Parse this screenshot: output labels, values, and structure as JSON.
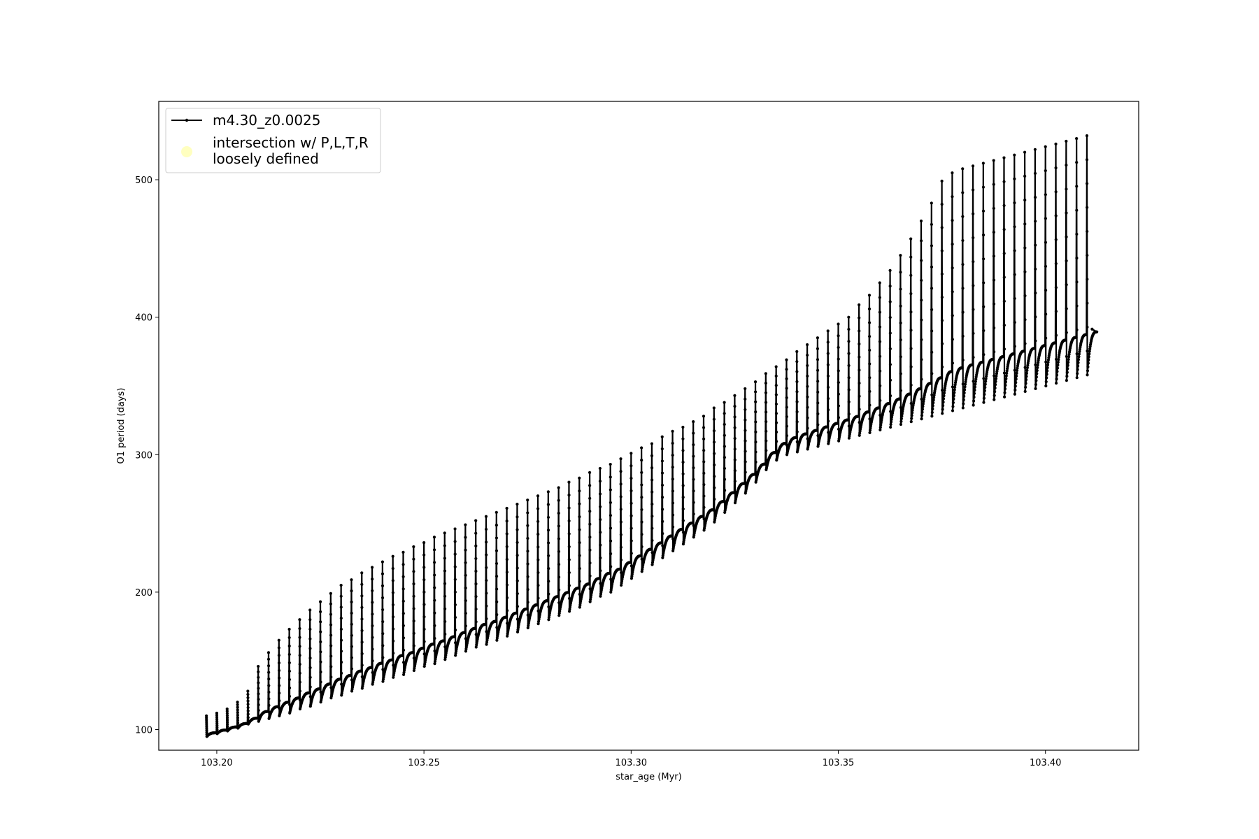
{
  "chart_data": {
    "type": "line",
    "xlabel": "star_age (Myr)",
    "ylabel": "O1 period (days)",
    "xlim": [
      103.186,
      103.4225
    ],
    "ylim": [
      85,
      557
    ],
    "x_ticks": [
      103.2,
      103.25,
      103.3,
      103.35,
      103.4
    ],
    "x_tick_labels": [
      "103.20",
      "103.25",
      "103.30",
      "103.35",
      "103.40"
    ],
    "y_ticks": [
      100,
      200,
      300,
      400,
      500
    ],
    "y_tick_labels": [
      "100",
      "200",
      "300",
      "400",
      "500"
    ],
    "grid": false,
    "legend_position": "top-left",
    "legend": [
      {
        "label": "m4.30_z0.0025",
        "marker": "line-with-dots",
        "color": "#000000"
      },
      {
        "label_lines": [
          "intersection w/ P,L,T,R",
          "loosely defined"
        ],
        "marker": "circle",
        "color": "#ffffc0"
      }
    ],
    "series": [
      {
        "name": "m4.30_z0.0025",
        "color": "#000000",
        "pulse_onsets_x": [
          103.1975,
          103.2,
          103.2025,
          103.205,
          103.2075,
          103.21,
          103.2125,
          103.215,
          103.2175,
          103.22,
          103.2225,
          103.225,
          103.2275,
          103.23,
          103.2325,
          103.235,
          103.2375,
          103.24,
          103.2425,
          103.245,
          103.2475,
          103.25,
          103.2525,
          103.255,
          103.2575,
          103.26,
          103.2625,
          103.265,
          103.2675,
          103.27,
          103.2725,
          103.275,
          103.2775,
          103.28,
          103.2825,
          103.285,
          103.2875,
          103.29,
          103.2925,
          103.295,
          103.2975,
          103.3,
          103.3025,
          103.305,
          103.3075,
          103.31,
          103.3125,
          103.315,
          103.3175,
          103.32,
          103.3225,
          103.325,
          103.3275,
          103.33,
          103.3325,
          103.335,
          103.3375,
          103.34,
          103.3425,
          103.345,
          103.3475,
          103.35,
          103.3525,
          103.355,
          103.3575,
          103.36,
          103.3625,
          103.365,
          103.3675,
          103.37,
          103.3725,
          103.375,
          103.3775,
          103.38,
          103.3825,
          103.385,
          103.3875,
          103.39,
          103.3925,
          103.395,
          103.3975,
          103.4,
          103.4025,
          103.405,
          103.4075,
          103.41
        ],
        "pulse_peak_y": [
          110,
          112,
          115,
          120,
          128,
          146,
          156,
          165,
          173,
          180,
          187,
          193,
          199,
          205,
          209,
          214,
          218,
          222,
          226,
          229,
          233,
          236,
          240,
          243,
          246,
          249,
          252,
          255,
          258,
          261,
          264,
          267,
          270,
          273,
          276,
          280,
          283,
          287,
          290,
          293,
          297,
          301,
          305,
          308,
          313,
          317,
          320,
          324,
          328,
          334,
          338,
          343,
          348,
          353,
          359,
          364,
          369,
          375,
          380,
          385,
          390,
          395,
          400,
          409,
          416,
          425,
          434,
          445,
          457,
          470,
          483,
          499,
          505,
          508,
          510,
          512,
          514,
          516,
          518,
          520,
          522,
          524,
          526,
          528,
          530,
          532
        ],
        "pulse_min_y": [
          95,
          97,
          99,
          101,
          104,
          106,
          108,
          110,
          112,
          115,
          117,
          120,
          123,
          125,
          128,
          130,
          133,
          135,
          138,
          140,
          143,
          146,
          148,
          151,
          154,
          157,
          160,
          162,
          165,
          168,
          171,
          174,
          177,
          180,
          183,
          186,
          189,
          193,
          197,
          200,
          205,
          210,
          215,
          220,
          225,
          230,
          235,
          240,
          245,
          251,
          258,
          265,
          272,
          280,
          289,
          296,
          300,
          302,
          304,
          306,
          308,
          310,
          312,
          314,
          316,
          318,
          320,
          322,
          324,
          326,
          328,
          330,
          332,
          334,
          336,
          338,
          340,
          342,
          344,
          346,
          348,
          350,
          352,
          354,
          356,
          358
        ]
      }
    ]
  }
}
